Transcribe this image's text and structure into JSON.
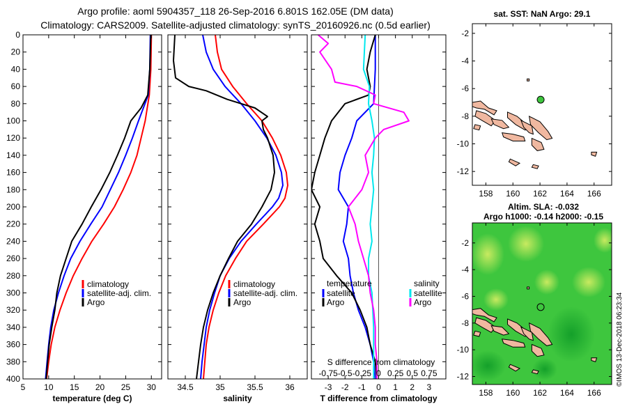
{
  "title": {
    "line1": "Argo profile: aoml 5904357_118 26-Sep-2016 6.801S 162.05E (DM data)",
    "line2": "Climatology: CARS2009. Satellite-adjusted climatology: synTS_20160926.nc (0.5d earlier)"
  },
  "colors": {
    "climatology": "#ff0000",
    "satellite": "#0000ff",
    "argo": "#000000",
    "argo_salinity_diff": "#ff00ff",
    "satellite_salinity_diff": "#00e8ee",
    "land": "#f0b8a0",
    "ocean_green": "#3ec63e"
  },
  "watermark": "©IMOS 13-Dec-2018 06:23:34",
  "chart_data": [
    {
      "type": "line",
      "id": "temperature",
      "xlabel": "temperature (deg C)",
      "ylabel": "",
      "xlim": [
        5,
        32
      ],
      "ylim": [
        400,
        0
      ],
      "xticks": [
        "5",
        "10",
        "15",
        "20",
        "25",
        "30"
      ],
      "xtick_values": [
        5,
        10,
        15,
        20,
        25,
        30
      ],
      "yticks": [
        "0",
        "20",
        "40",
        "60",
        "80",
        "100",
        "120",
        "140",
        "160",
        "180",
        "200",
        "220",
        "240",
        "260",
        "280",
        "300",
        "320",
        "340",
        "360",
        "380",
        "400"
      ],
      "legend": {
        "location": "lower-right",
        "entries": [
          "climatology",
          "satellite-adj. clim.",
          "Argo"
        ]
      },
      "series": [
        {
          "name": "climatology",
          "color": "#ff0000",
          "depth": [
            0,
            40,
            70,
            100,
            120,
            140,
            160,
            180,
            200,
            220,
            240,
            260,
            280,
            300,
            320,
            340,
            360,
            380,
            400
          ],
          "values": [
            30.0,
            29.9,
            29.6,
            28.8,
            28.0,
            27.2,
            26.0,
            24.5,
            22.8,
            20.7,
            18.4,
            16.5,
            14.8,
            13.4,
            12.2,
            11.2,
            10.5,
            10.0,
            9.6
          ]
        },
        {
          "name": "satellite-adj. clim.",
          "color": "#0000ff",
          "depth": [
            0,
            40,
            70,
            100,
            120,
            140,
            160,
            180,
            200,
            220,
            240,
            260,
            280,
            300,
            320,
            340,
            360,
            380,
            400
          ],
          "values": [
            29.8,
            29.7,
            29.4,
            27.5,
            26.3,
            25.0,
            23.6,
            22.0,
            20.4,
            18.2,
            16.1,
            14.3,
            13.0,
            11.9,
            11.0,
            10.4,
            10.0,
            9.7,
            9.4
          ]
        },
        {
          "name": "Argo",
          "color": "#000000",
          "depth": [
            0,
            40,
            70,
            85,
            100,
            120,
            140,
            160,
            180,
            200,
            220,
            240,
            260,
            280,
            300,
            320,
            340,
            360,
            380,
            400
          ],
          "values": [
            29.9,
            29.7,
            29.3,
            28.0,
            26.0,
            24.8,
            23.4,
            21.9,
            20.2,
            18.3,
            16.5,
            14.5,
            13.4,
            12.3,
            11.6,
            11.2,
            10.6,
            10.1,
            9.8,
            9.5
          ]
        }
      ]
    },
    {
      "type": "line",
      "id": "salinity",
      "xlabel": "salinity",
      "ylabel": "",
      "xlim": [
        34.25,
        36.25
      ],
      "ylim": [
        400,
        0
      ],
      "xticks": [
        "34.5",
        "35",
        "35.5",
        "36"
      ],
      "xtick_values": [
        34.5,
        35,
        35.5,
        36
      ],
      "legend": {
        "location": "lower-right",
        "entries": [
          "climatology",
          "satellite-adj. clim.",
          "Argo"
        ]
      },
      "series": [
        {
          "name": "climatology",
          "color": "#ff0000",
          "depth": [
            0,
            20,
            40,
            60,
            80,
            100,
            120,
            140,
            160,
            175,
            190,
            200,
            220,
            240,
            260,
            280,
            300,
            320,
            340,
            360,
            380,
            400
          ],
          "values": [
            34.93,
            34.96,
            35.02,
            35.18,
            35.38,
            35.6,
            35.75,
            35.87,
            35.95,
            35.97,
            35.93,
            35.85,
            35.62,
            35.38,
            35.22,
            35.08,
            34.98,
            34.9,
            34.84,
            34.8,
            34.78,
            34.76
          ]
        },
        {
          "name": "satellite-adj. clim.",
          "color": "#0000ff",
          "depth": [
            0,
            20,
            40,
            60,
            80,
            100,
            120,
            140,
            160,
            175,
            190,
            200,
            220,
            240,
            260,
            280,
            300,
            320,
            340,
            360,
            380,
            400
          ],
          "values": [
            34.75,
            34.8,
            34.9,
            35.07,
            35.3,
            35.5,
            35.67,
            35.8,
            35.88,
            35.9,
            35.84,
            35.75,
            35.52,
            35.3,
            35.13,
            35.0,
            34.92,
            34.85,
            34.8,
            34.77,
            34.74,
            34.72
          ]
        },
        {
          "name": "Argo",
          "color": "#000000",
          "depth": [
            0,
            30,
            50,
            60,
            65,
            75,
            85,
            95,
            100,
            110,
            120,
            140,
            160,
            180,
            200,
            220,
            240,
            260,
            280,
            300,
            320,
            340,
            360,
            380,
            400
          ],
          "values": [
            34.35,
            34.33,
            34.36,
            34.55,
            34.8,
            35.1,
            35.5,
            35.68,
            35.6,
            35.62,
            35.68,
            35.76,
            35.78,
            35.73,
            35.6,
            35.45,
            35.25,
            35.12,
            35.0,
            34.9,
            34.82,
            34.76,
            34.72,
            34.69,
            34.66
          ]
        }
      ]
    },
    {
      "type": "line",
      "id": "difference",
      "xlabel": "T difference from climatology",
      "xlabel_top": "S difference from climatology",
      "xlim": [
        -4,
        4
      ],
      "ylim": [
        400,
        0
      ],
      "xticks": [
        "-3",
        "-2",
        "-1",
        "0",
        "1",
        "2",
        "3"
      ],
      "xtick_values": [
        -3,
        -2,
        -1,
        0,
        1,
        2,
        3
      ],
      "xticks_top": [
        "-0.75",
        "-0.5",
        "-0.25",
        "0",
        "0.25",
        "0.5",
        "0.75"
      ],
      "xticks_top_values": [
        -3,
        -2,
        -1,
        0,
        1,
        2,
        3
      ],
      "legend_temperature": {
        "title": "temperature",
        "entries": [
          "satellite",
          "Argo"
        ]
      },
      "legend_salinity": {
        "title": "salinity",
        "entries": [
          "satellite",
          "Argo"
        ]
      },
      "series": [
        {
          "name": "satellite (temperature)",
          "color": "#0000ff",
          "depth": [
            0,
            40,
            60,
            80,
            100,
            120,
            140,
            160,
            180,
            200,
            220,
            240,
            260,
            280,
            300,
            320,
            340,
            360,
            380,
            400
          ],
          "values": [
            -0.2,
            -0.2,
            -0.25,
            -0.3,
            -1.3,
            -1.6,
            -2.0,
            -2.3,
            -2.4,
            -1.8,
            -1.9,
            -2.1,
            -1.8,
            -1.7,
            -1.5,
            -1.2,
            -0.8,
            -0.5,
            -0.3,
            -0.2
          ]
        },
        {
          "name": "Argo (temperature)",
          "color": "#000000",
          "depth": [
            0,
            20,
            40,
            60,
            70,
            80,
            100,
            120,
            140,
            160,
            180,
            200,
            220,
            240,
            260,
            280,
            300,
            320,
            340,
            360,
            380,
            400
          ],
          "values": [
            -0.2,
            -0.5,
            -0.7,
            -0.5,
            -0.6,
            -2.0,
            -2.8,
            -3.2,
            -3.5,
            -3.8,
            -4.0,
            -3.5,
            -3.8,
            -3.5,
            -3.3,
            -2.5,
            -1.6,
            -1.1,
            -0.7,
            -0.5,
            -0.2,
            -0.1
          ]
        },
        {
          "name": "satellite (salinity)",
          "color": "#00e8ee",
          "depth": [
            0,
            40,
            60,
            80,
            100,
            120,
            140,
            160,
            180,
            200,
            220,
            240,
            260,
            280,
            300,
            320,
            340,
            360,
            380,
            400
          ],
          "values": [
            -0.8,
            -0.9,
            -0.55,
            -0.6,
            -0.4,
            -0.25,
            -0.3,
            -0.4,
            -0.3,
            -0.4,
            -0.5,
            -0.4,
            -0.6,
            -0.6,
            -0.4,
            -0.35,
            -0.3,
            -0.3,
            -0.3,
            -0.3
          ]
        },
        {
          "name": "Argo (salinity)",
          "color": "#ff00ff",
          "depth": [
            0,
            10,
            20,
            40,
            55,
            60,
            70,
            80,
            90,
            100,
            110,
            120,
            140,
            160,
            180,
            200,
            220,
            240,
            260,
            280,
            300,
            320,
            340,
            360,
            380,
            400
          ],
          "values": [
            -3.6,
            -3.0,
            -3.5,
            -2.8,
            -2.6,
            -1.3,
            -0.2,
            -0.3,
            1.5,
            1.8,
            0.3,
            -0.2,
            -0.8,
            -0.6,
            -1.0,
            -1.8,
            -1.4,
            -1.2,
            -0.9,
            -0.6,
            -0.5,
            -0.3,
            -0.2,
            -0.2,
            -0.1,
            -0.1
          ]
        }
      ]
    },
    {
      "type": "scatter",
      "id": "sst-map",
      "title": "sat. SST: NaN Argo: 29.1",
      "xlim": [
        157,
        167.3
      ],
      "ylim": [
        -13,
        -1.3
      ],
      "xticks": [
        "158",
        "160",
        "162",
        "164",
        "166"
      ],
      "xtick_values": [
        158,
        160,
        162,
        164,
        166
      ],
      "yticks": [
        "-2",
        "-4",
        "-6",
        "-8",
        "-10",
        "-12"
      ],
      "ytick_values": [
        -2,
        -4,
        -6,
        -8,
        -10,
        -12
      ],
      "argo_position": {
        "lon": 162.05,
        "lat": -6.801
      }
    },
    {
      "type": "heatmap",
      "id": "sla-map",
      "title_line1": "Altim. SLA: -0.032",
      "title_line2": "Argo h1000: -0.14 h2000: -0.15",
      "xlim": [
        157,
        167.3
      ],
      "ylim": [
        -12.6,
        -0.5
      ],
      "xticks": [
        "158",
        "160",
        "162",
        "164",
        "166"
      ],
      "xtick_values": [
        158,
        160,
        162,
        164,
        166
      ],
      "yticks": [
        "-2",
        "-4",
        "-6",
        "-8",
        "-10",
        "-12"
      ],
      "ytick_values": [
        -2,
        -4,
        -6,
        -8,
        -10,
        -12
      ],
      "argo_position": {
        "lon": 162.05,
        "lat": -6.801
      }
    }
  ]
}
